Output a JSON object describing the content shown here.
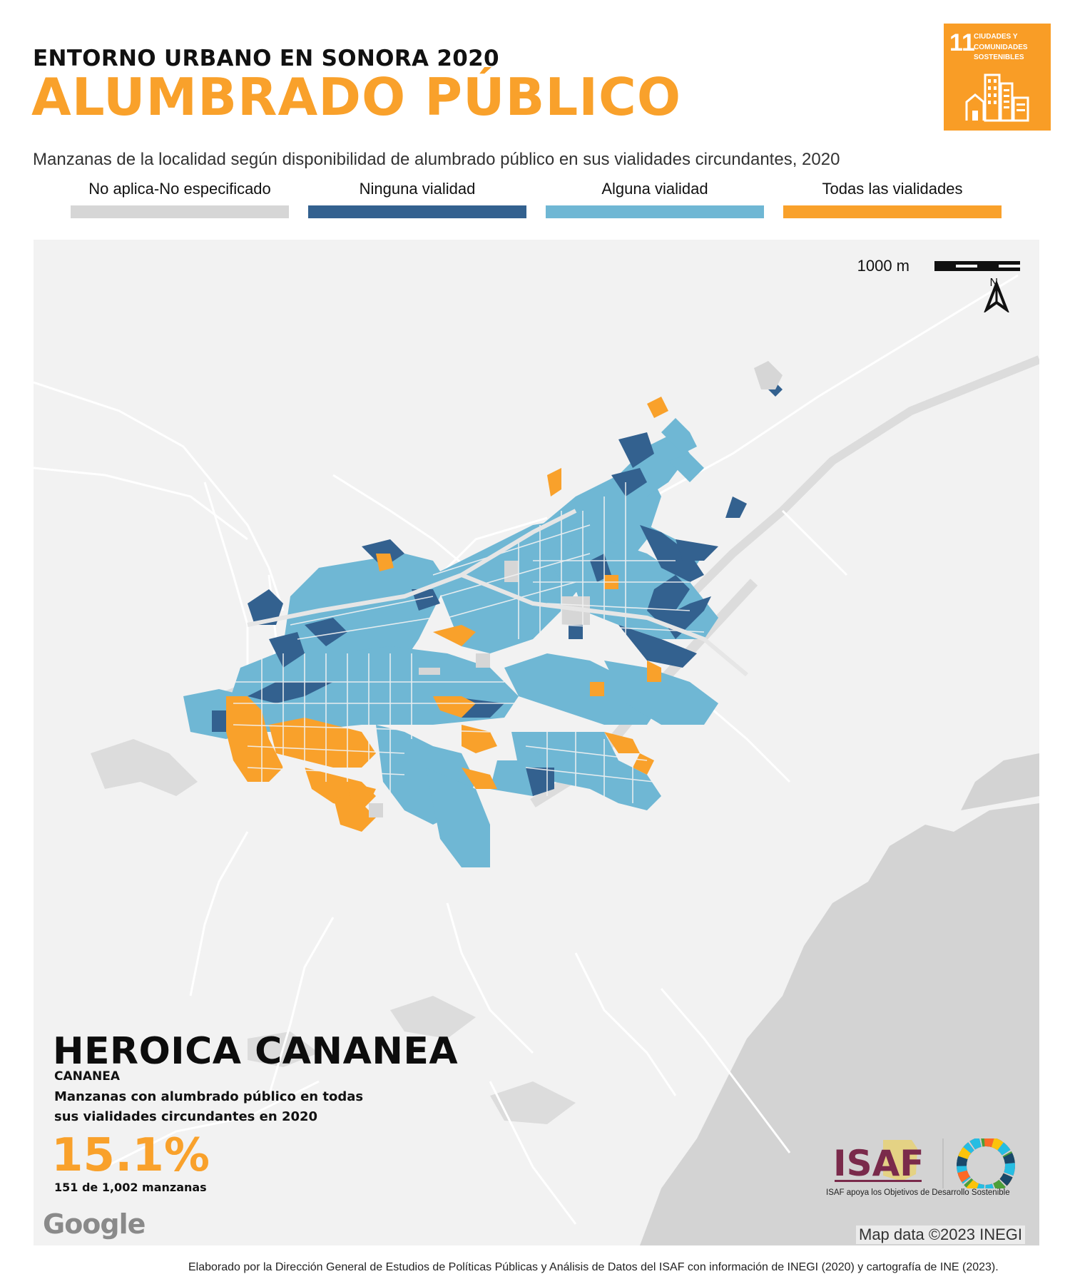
{
  "header": {
    "kicker": "ENTORNO URBANO EN SONORA 2020",
    "title": "ALUMBRADO PÚBLICO",
    "subtitle": "Manzanas de la localidad según disponibilidad de alumbrado público en sus vialidades circundantes, 2020"
  },
  "legend": [
    {
      "label": "No aplica-No especificado",
      "color": "#d6d6d6"
    },
    {
      "label": "Ninguna vialidad",
      "color": "#33618f"
    },
    {
      "label": "Alguna vialidad",
      "color": "#6fb7d4"
    },
    {
      "label": "Todas las vialidades",
      "color": "#f9a12b"
    }
  ],
  "sdg_badge": {
    "number": "11",
    "text": "CIUDADES Y COMUNIDADES SOSTENIBLES",
    "color": "#f99d26",
    "icon": "city-buildings-icon"
  },
  "map": {
    "scale_label": "1000 m",
    "north_label": "N",
    "background": "#f2f2f2",
    "terrain_color": "#d3d3d3",
    "road_color": "#ffffff"
  },
  "locality": {
    "name": "HEROICA CANANEA",
    "municipality": "CANANEA",
    "stat_description": "Manzanas con alumbrado público en todas sus vialidades circundantes en 2020",
    "percent": "15.1%",
    "count_text": "151 de 1,002 manzanas"
  },
  "attribution": {
    "google": "Google",
    "map_data": "Map data ©2023 INEGI"
  },
  "isaf": {
    "logo_text": "ISAF",
    "tagline": "ISAF apoya los Objetivos de Desarrollo Sostenible"
  },
  "footer": "Elaborado por la Dirección General de Estudios de Políticas Públicas y Análisis de Datos del ISAF con información de INEGI (2020) y cartografía de INE (2023)."
}
